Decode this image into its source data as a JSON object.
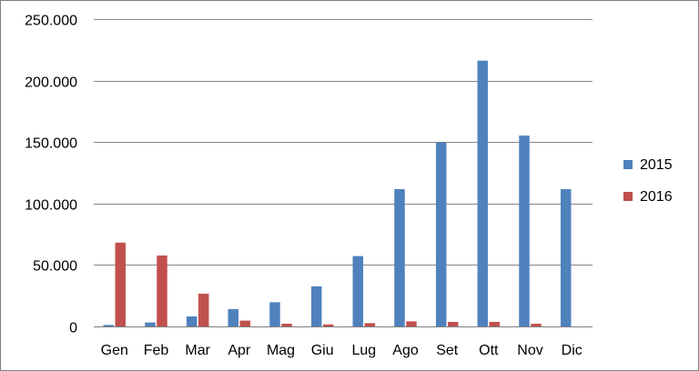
{
  "chart_data": {
    "type": "bar",
    "categories": [
      "Gen",
      "Feb",
      "Mar",
      "Apr",
      "Mag",
      "Giu",
      "Lug",
      "Ago",
      "Set",
      "Ott",
      "Nov",
      "Dic"
    ],
    "series": [
      {
        "name": "2015",
        "color": "#4f81bd",
        "values": [
          1000,
          3000,
          8000,
          14000,
          19500,
          32500,
          57000,
          111500,
          149500,
          216000,
          155000,
          111500
        ]
      },
      {
        "name": "2016",
        "color": "#c0504d",
        "values": [
          68000,
          57500,
          26500,
          4500,
          2000,
          1500,
          2500,
          4000,
          3500,
          3500,
          2000,
          null
        ]
      }
    ],
    "y_ticks": [
      "0",
      "50.000",
      "100.000",
      "150.000",
      "200.000",
      "250.000"
    ],
    "ylim": [
      0,
      250000
    ],
    "grid": true,
    "legend": "right",
    "title": "",
    "xlabel": "",
    "ylabel": ""
  }
}
